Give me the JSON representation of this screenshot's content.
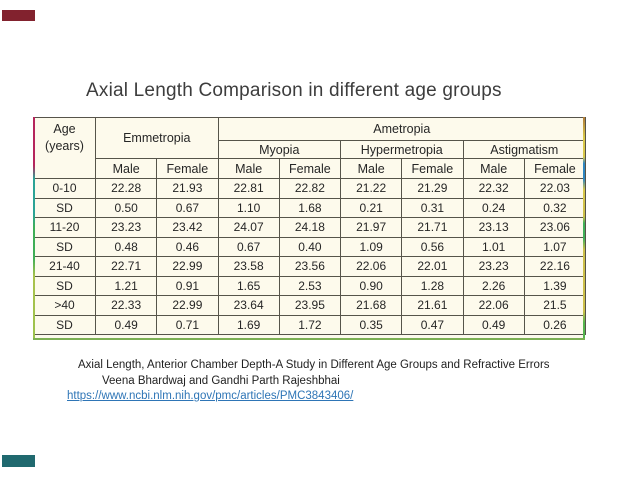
{
  "slide": {
    "title": "Axial Length Comparison in different age groups"
  },
  "table": {
    "age_header": "Age (years)",
    "groups": {
      "emmetropia": "Emmetropia",
      "ametropia": "Ametropia"
    },
    "subgroups": [
      "Myopia",
      "Hypermetropia",
      "Astigmatism"
    ],
    "sex": [
      "Male",
      "Female"
    ],
    "rows": [
      {
        "label": "0-10",
        "values": [
          "22.28",
          "21.93",
          "22.81",
          "22.82",
          "21.22",
          "21.29",
          "22.32",
          "22.03"
        ]
      },
      {
        "label": "SD",
        "values": [
          "0.50",
          "0.67",
          "1.10",
          "1.68",
          "0.21",
          "0.31",
          "0.24",
          "0.32"
        ]
      },
      {
        "label": "11-20",
        "values": [
          "23.23",
          "23.42",
          "24.07",
          "24.18",
          "21.97",
          "21.71",
          "23.13",
          "23.06"
        ]
      },
      {
        "label": "SD",
        "values": [
          "0.48",
          "0.46",
          "0.67",
          "0.40",
          "1.09",
          "0.56",
          "1.01",
          "1.07"
        ]
      },
      {
        "label": "21-40",
        "values": [
          "22.71",
          "22.99",
          "23.58",
          "23.56",
          "22.06",
          "22.01",
          "23.23",
          "22.16"
        ]
      },
      {
        "label": "SD",
        "values": [
          "1.21",
          "0.91",
          "1.65",
          "2.53",
          "0.90",
          "1.28",
          "2.26",
          "1.39"
        ]
      },
      {
        "label": ">40",
        "values": [
          "22.33",
          "22.99",
          "23.64",
          "23.95",
          "21.68",
          "21.61",
          "22.06",
          "21.5"
        ]
      },
      {
        "label": "SD",
        "values": [
          "0.49",
          "0.71",
          "1.69",
          "1.72",
          "0.35",
          "0.47",
          "0.49",
          "0.26"
        ]
      }
    ]
  },
  "footer": {
    "citation": "Axial Length, Anterior Chamber Depth-A Study in Different Age Groups and Refractive Errors",
    "authors": "Veena Bhardwaj and Gandhi Parth Rajeshbhai",
    "link": "https://www.ncbi.nlm.nih.gov/pmc/articles/PMC3843406/"
  },
  "colors": {
    "title_text": "#3d3d3d",
    "cell_background": "#fdfaec",
    "table_border": "#56544a",
    "link_blue": "#2e75b6",
    "left_edge_accents": [
      "#b5255c",
      "#2ba396",
      "#3fae57",
      "#a9c24d"
    ],
    "right_edge_accents": [
      "#b07b3a",
      "#d9c84a",
      "#2e86c1",
      "#41b05a",
      "#55b54e"
    ],
    "top_corner_bar": "#82222e",
    "bottom_corner_bar": "#20696f"
  }
}
